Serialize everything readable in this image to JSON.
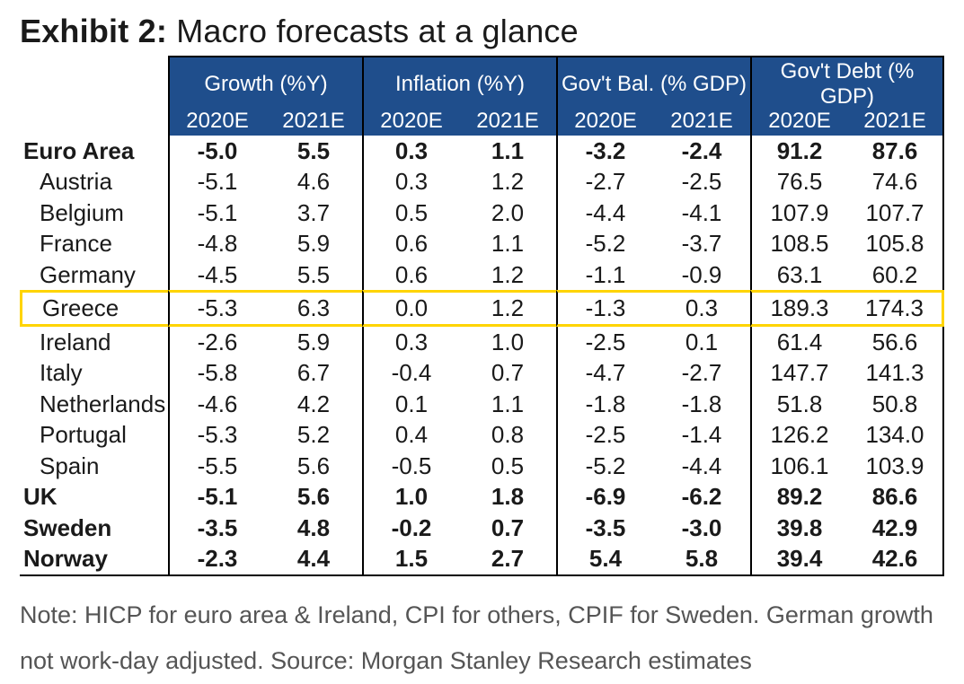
{
  "title": {
    "prefix": "Exhibit 2:",
    "rest": " Macro forecasts at a glance"
  },
  "colors": {
    "header_bg": "#1f4e8c",
    "header_fg": "#ffffff",
    "border": "#000000",
    "highlight": "#ffd400",
    "footnote_fg": "#555555",
    "body_fg": "#1a1a1a"
  },
  "typography": {
    "title_fontsize": 36,
    "header_fontsize": 24,
    "body_fontsize": 26,
    "footnote_fontsize": 27
  },
  "table": {
    "type": "table",
    "groups": [
      {
        "label": "Growth (%Y)",
        "years": [
          "2020E",
          "2021E"
        ]
      },
      {
        "label": "Inflation (%Y)",
        "years": [
          "2020E",
          "2021E"
        ]
      },
      {
        "label": "Gov't Bal. (% GDP)",
        "years": [
          "2020E",
          "2021E"
        ]
      },
      {
        "label": "Gov't Debt (% GDP)",
        "years": [
          "2020E",
          "2021E"
        ]
      }
    ],
    "rows": [
      {
        "label": "Euro Area",
        "bold": true,
        "values": [
          "-5.0",
          "5.5",
          "0.3",
          "1.1",
          "-3.2",
          "-2.4",
          "91.2",
          "87.6"
        ]
      },
      {
        "label": "Austria",
        "bold": false,
        "values": [
          "-5.1",
          "4.6",
          "0.3",
          "1.2",
          "-2.7",
          "-2.5",
          "76.5",
          "74.6"
        ]
      },
      {
        "label": "Belgium",
        "bold": false,
        "values": [
          "-5.1",
          "3.7",
          "0.5",
          "2.0",
          "-4.4",
          "-4.1",
          "107.9",
          "107.7"
        ]
      },
      {
        "label": "France",
        "bold": false,
        "values": [
          "-4.8",
          "5.9",
          "0.6",
          "1.1",
          "-5.2",
          "-3.7",
          "108.5",
          "105.8"
        ]
      },
      {
        "label": "Germany",
        "bold": false,
        "values": [
          "-4.5",
          "5.5",
          "0.6",
          "1.2",
          "-1.1",
          "-0.9",
          "63.1",
          "60.2"
        ]
      },
      {
        "label": "Greece",
        "bold": false,
        "highlight": true,
        "values": [
          "-5.3",
          "6.3",
          "0.0",
          "1.2",
          "-1.3",
          "0.3",
          "189.3",
          "174.3"
        ]
      },
      {
        "label": "Ireland",
        "bold": false,
        "values": [
          "-2.6",
          "5.9",
          "0.3",
          "1.0",
          "-2.5",
          "0.1",
          "61.4",
          "56.6"
        ]
      },
      {
        "label": "Italy",
        "bold": false,
        "values": [
          "-5.8",
          "6.7",
          "-0.4",
          "0.7",
          "-4.7",
          "-2.7",
          "147.7",
          "141.3"
        ]
      },
      {
        "label": "Netherlands",
        "bold": false,
        "values": [
          "-4.6",
          "4.2",
          "0.1",
          "1.1",
          "-1.8",
          "-1.8",
          "51.8",
          "50.8"
        ]
      },
      {
        "label": "Portugal",
        "bold": false,
        "values": [
          "-5.3",
          "5.2",
          "0.4",
          "0.8",
          "-2.5",
          "-1.4",
          "126.2",
          "134.0"
        ]
      },
      {
        "label": "Spain",
        "bold": false,
        "values": [
          "-5.5",
          "5.6",
          "-0.5",
          "0.5",
          "-5.2",
          "-4.4",
          "106.1",
          "103.9"
        ]
      },
      {
        "label": "UK",
        "bold": true,
        "values": [
          "-5.1",
          "5.6",
          "1.0",
          "1.8",
          "-6.9",
          "-6.2",
          "89.2",
          "86.6"
        ]
      },
      {
        "label": "Sweden",
        "bold": true,
        "values": [
          "-3.5",
          "4.8",
          "-0.2",
          "0.7",
          "-3.5",
          "-3.0",
          "39.8",
          "42.9"
        ]
      },
      {
        "label": "Norway",
        "bold": true,
        "values": [
          "-2.3",
          "4.4",
          "1.5",
          "2.7",
          "5.4",
          "5.8",
          "39.4",
          "42.6"
        ]
      }
    ]
  },
  "footnote": "Note: HICP for euro area & Ireland, CPI for others, CPIF for Sweden. German growth not work-day adjusted. Source: Morgan Stanley Research estimates"
}
